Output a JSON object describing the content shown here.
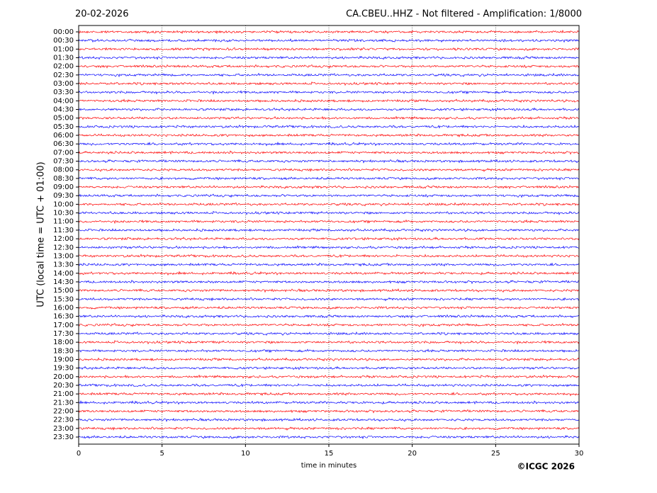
{
  "chart_data": {
    "type": "helicorder",
    "date": "20-02-2026",
    "title": "CA.CBEU..HHZ - Not filtered - Amplification: 1/8000",
    "ylabel": "UTC (local time = UTC + 01:00)",
    "xlabel": "time in minutes",
    "copyright": "©ICGC 2026",
    "categories": [
      "00:00",
      "00:30",
      "01:00",
      "01:30",
      "02:00",
      "02:30",
      "03:00",
      "03:30",
      "04:00",
      "04:30",
      "05:00",
      "05:30",
      "06:00",
      "06:30",
      "07:00",
      "07:30",
      "08:00",
      "08:30",
      "09:00",
      "09:30",
      "10:00",
      "10:30",
      "11:00",
      "11:30",
      "12:00",
      "12:30",
      "13:00",
      "13:30",
      "14:00",
      "14:30",
      "15:00",
      "15:30",
      "16:00",
      "16:30",
      "17:00",
      "17:30",
      "18:00",
      "18:30",
      "19:00",
      "19:30",
      "20:00",
      "20:30",
      "21:00",
      "21:30",
      "22:00",
      "22:30",
      "23:00",
      "23:30"
    ],
    "colors": [
      "#ff0000",
      "#0000ff"
    ],
    "xlim": [
      0,
      30
    ],
    "xticks": [
      0,
      5,
      10,
      15,
      20,
      25,
      30
    ],
    "grid": true
  }
}
